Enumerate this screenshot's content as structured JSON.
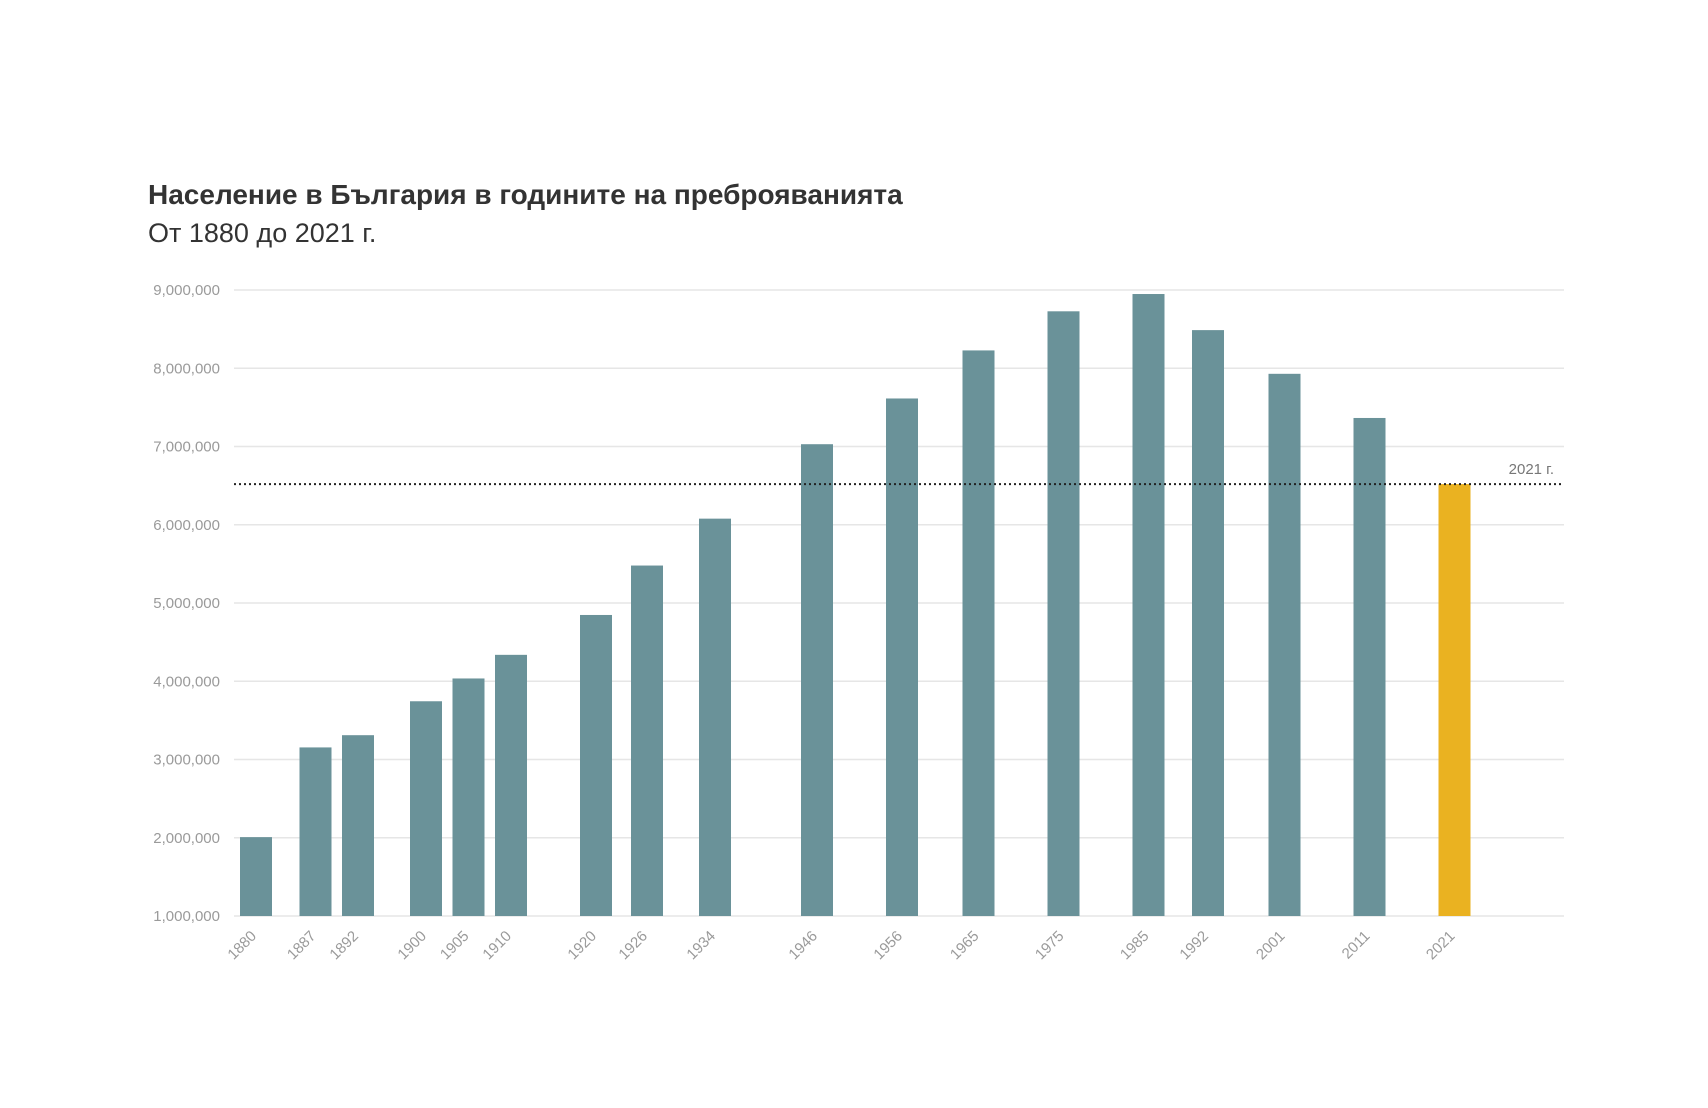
{
  "colors": {
    "bar": "#6a9299",
    "highlight": "#eab221",
    "grid": "#e6e6e6",
    "reference_line": "#222222"
  },
  "chart_data": {
    "type": "bar",
    "title": "Население в България в годините на преброяванията",
    "subtitle": "От 1880 до 2021 г.",
    "x_scale": "linear-years",
    "categories": [
      "1880",
      "1887",
      "1892",
      "1900",
      "1905",
      "1910",
      "1920",
      "1926",
      "1934",
      "1946",
      "1956",
      "1965",
      "1975",
      "1985",
      "1992",
      "2001",
      "2011",
      "2021"
    ],
    "values": [
      2007919,
      3154375,
      3310713,
      3744283,
      4035575,
      4337513,
      4846971,
      5478741,
      6077939,
      7029349,
      7613709,
      8227866,
      8727771,
      8948649,
      8487317,
      7928901,
      7364570,
      6519789
    ],
    "highlight_category": "2021",
    "ylim": [
      1000000,
      9000000
    ],
    "yticks": [
      1000000,
      2000000,
      3000000,
      4000000,
      5000000,
      6000000,
      7000000,
      8000000,
      9000000
    ],
    "ytick_labels": [
      "1,000,000",
      "2,000,000",
      "3,000,000",
      "4,000,000",
      "5,000,000",
      "6,000,000",
      "7,000,000",
      "8,000,000",
      "9,000,000"
    ],
    "reference_line": {
      "value": 6519789,
      "label": "2021 г.",
      "style": "dotted"
    },
    "grid": true,
    "legend": "none"
  }
}
